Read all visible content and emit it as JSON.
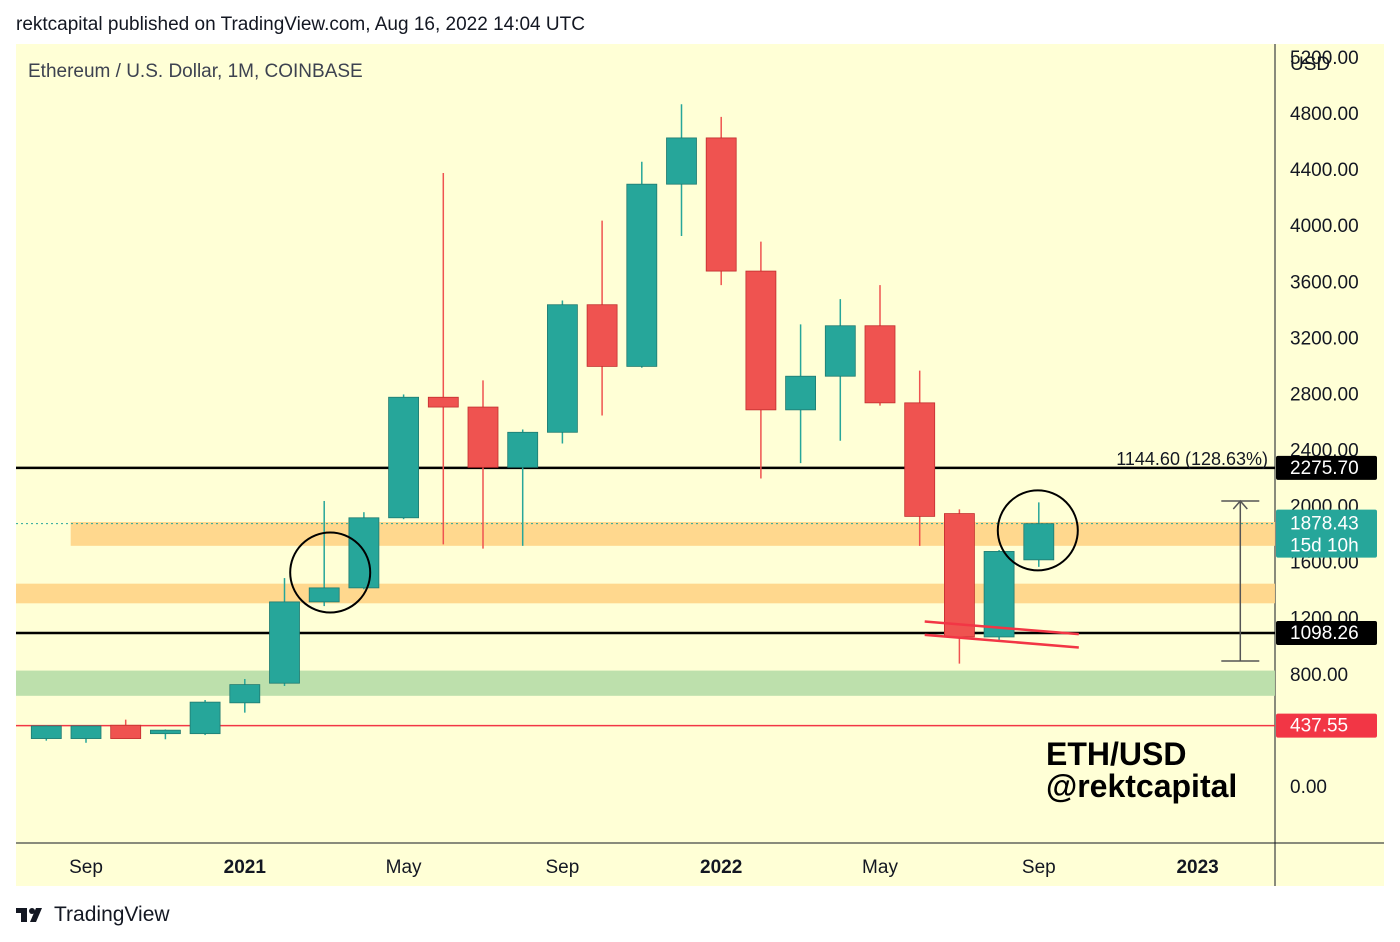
{
  "header": {
    "published": "rektcapital published on TradingView.com, Aug 16, 2022 14:04 UTC"
  },
  "footer": {
    "brand": "TradingView"
  },
  "chart_data": {
    "type": "candlestick",
    "title": "Ethereum / U.S. Dollar, 1M, COINBASE",
    "currency": "USD",
    "ylim": [
      -400,
      5300
    ],
    "y_ticks": [
      0,
      400,
      800,
      1200,
      1600,
      2000,
      2400,
      2800,
      3200,
      3600,
      4000,
      4400,
      4800,
      5200
    ],
    "y_tick_labels": [
      "0.00",
      "",
      "800.00",
      "1200.00",
      "1600.00",
      "2000.00",
      "2400.00",
      "2800.00",
      "3200.00",
      "3600.00",
      "4000.00",
      "4400.00",
      "4800.00",
      "5200.00"
    ],
    "x_labels": [
      {
        "label": "Sep",
        "month": "2020-09",
        "bold": false
      },
      {
        "label": "2021",
        "month": "2021-01",
        "bold": true
      },
      {
        "label": "May",
        "month": "2021-05",
        "bold": false
      },
      {
        "label": "Sep",
        "month": "2021-09",
        "bold": false
      },
      {
        "label": "2022",
        "month": "2022-01",
        "bold": true
      },
      {
        "label": "May",
        "month": "2022-05",
        "bold": false
      },
      {
        "label": "Sep",
        "month": "2022-09",
        "bold": false
      },
      {
        "label": "2023",
        "month": "2023-01",
        "bold": true
      }
    ],
    "candles": [
      {
        "month": "2020-08",
        "open": 345,
        "high": 440,
        "low": 330,
        "close": 435
      },
      {
        "month": "2020-09",
        "open": 345,
        "high": 420,
        "low": 315,
        "close": 435
      },
      {
        "month": "2020-10",
        "open": 440,
        "high": 480,
        "low": 345,
        "close": 345
      },
      {
        "month": "2020-11",
        "open": 380,
        "high": 410,
        "low": 340,
        "close": 405
      },
      {
        "month": "2020-12",
        "open": 380,
        "high": 620,
        "low": 370,
        "close": 605
      },
      {
        "month": "2021-01",
        "open": 600,
        "high": 770,
        "low": 530,
        "close": 730
      },
      {
        "month": "2021-02",
        "open": 740,
        "high": 1490,
        "low": 720,
        "close": 1320
      },
      {
        "month": "2021-03",
        "open": 1320,
        "high": 2040,
        "low": 1290,
        "close": 1420
      },
      {
        "month": "2021-04",
        "open": 1420,
        "high": 1960,
        "low": 1410,
        "close": 1920
      },
      {
        "month": "2021-05",
        "open": 1920,
        "high": 2800,
        "low": 1910,
        "close": 2780
      },
      {
        "month": "2021-06",
        "open": 2780,
        "high": 4380,
        "low": 1730,
        "close": 2710
      },
      {
        "month": "2021-07",
        "open": 2710,
        "high": 2900,
        "low": 1700,
        "close": 2280
      },
      {
        "month": "2021-08",
        "open": 2280,
        "high": 2550,
        "low": 1720,
        "close": 2530
      },
      {
        "month": "2021-09",
        "open": 2530,
        "high": 3470,
        "low": 2450,
        "close": 3440
      },
      {
        "month": "2021-10",
        "open": 3440,
        "high": 4040,
        "low": 2650,
        "close": 3000
      },
      {
        "month": "2021-11",
        "open": 3000,
        "high": 4460,
        "low": 2990,
        "close": 4300
      },
      {
        "month": "2021-12",
        "open": 4300,
        "high": 4870,
        "low": 3930,
        "close": 4630
      },
      {
        "month": "2022-01",
        "open": 4630,
        "high": 4780,
        "low": 3580,
        "close": 3680
      },
      {
        "month": "2022-02",
        "open": 3680,
        "high": 3890,
        "low": 2200,
        "close": 2690
      },
      {
        "month": "2022-03",
        "open": 2690,
        "high": 3300,
        "low": 2310,
        "close": 2930
      },
      {
        "month": "2022-04",
        "open": 2930,
        "high": 3480,
        "low": 2470,
        "close": 3290
      },
      {
        "month": "2022-05",
        "open": 3290,
        "high": 3580,
        "low": 2720,
        "close": 2740
      },
      {
        "month": "2022-06",
        "open": 2740,
        "high": 2970,
        "low": 1720,
        "close": 1930
      },
      {
        "month": "2022-07",
        "open": 1950,
        "high": 1980,
        "low": 880,
        "close": 1070
      },
      {
        "month": "2022-08",
        "open": 1070,
        "high": 1690,
        "low": 1040,
        "close": 1680
      },
      {
        "month": "2022-09",
        "open": 1620,
        "high": 2030,
        "low": 1570,
        "close": 1878
      }
    ],
    "horizontal_lines": [
      {
        "value": 2275.7,
        "color": "#000000",
        "label": "2275.70"
      },
      {
        "value": 1098.26,
        "color": "#000000",
        "label": "1098.26"
      },
      {
        "value": 437.55,
        "color": "#f23645",
        "label": "437.55"
      }
    ],
    "price_label": {
      "value": 1878.43,
      "label": "1878.43",
      "countdown": "15d 10h",
      "color": "#26a69a"
    },
    "zones": [
      {
        "from": 1720,
        "to": 1890,
        "color": "#ffd68a",
        "start_month": "2020-10"
      },
      {
        "from": 1310,
        "to": 1450,
        "color": "#ffd68a",
        "start_month": "2020-06"
      },
      {
        "from": 650,
        "to": 830,
        "color": "#b9deaa",
        "start_month": "2020-06"
      }
    ],
    "measurement": {
      "low": 898,
      "high": 2040,
      "text": "1144.60 (128.63%)",
      "month": "2023-02"
    },
    "annotation": {
      "line1": "ETH/USD",
      "line2": "@rektcapital"
    }
  }
}
